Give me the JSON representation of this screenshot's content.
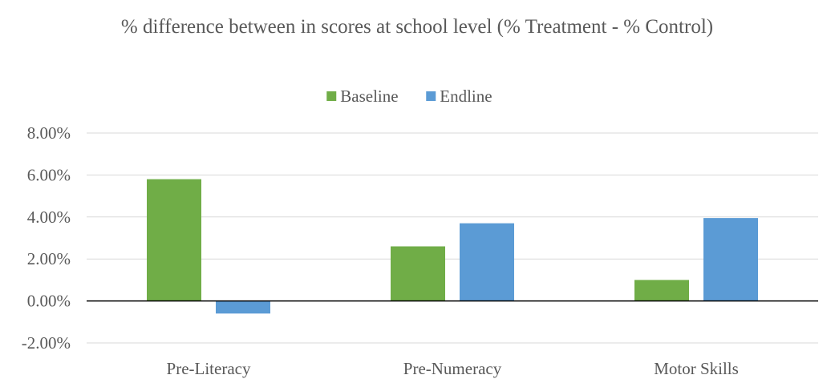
{
  "chart_data": {
    "type": "bar",
    "title": "% difference between in scores at school level (% Treatment - % Control)",
    "categories": [
      "Pre-Literacy",
      "Pre-Numeracy",
      "Motor Skills"
    ],
    "series": [
      {
        "name": "Baseline",
        "color": "#70AD47",
        "values": [
          5.8,
          2.6,
          1.0
        ]
      },
      {
        "name": "Endline",
        "color": "#5B9BD5",
        "values": [
          -0.6,
          3.7,
          3.95
        ]
      }
    ],
    "ylim": [
      -2,
      8
    ],
    "yticks": [
      8,
      6,
      4,
      2,
      0,
      -2
    ],
    "ytick_labels": [
      "8.00%",
      "6.00%",
      "4.00%",
      "2.00%",
      "0.00%",
      "-2.00%"
    ],
    "grid": true,
    "legend": "top-center",
    "xlabel": "",
    "ylabel": ""
  }
}
